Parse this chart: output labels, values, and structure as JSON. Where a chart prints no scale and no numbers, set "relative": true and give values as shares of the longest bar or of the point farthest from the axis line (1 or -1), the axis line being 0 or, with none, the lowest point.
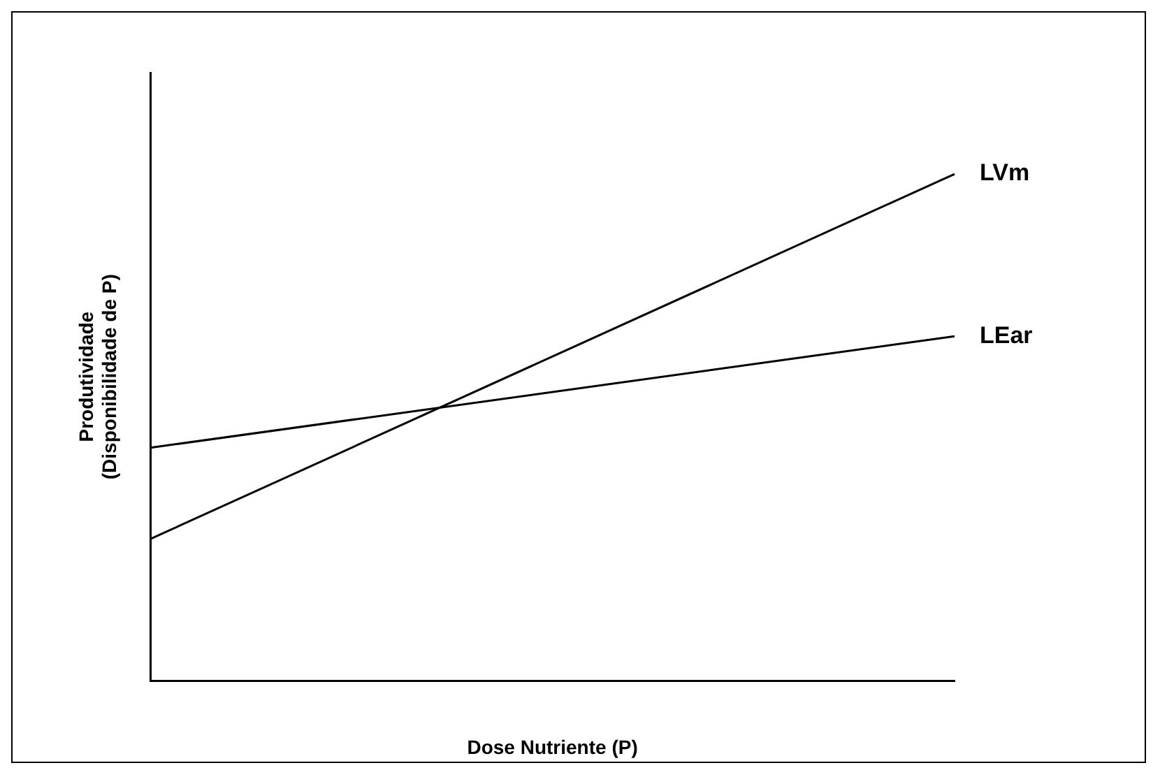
{
  "chart_data": {
    "type": "line",
    "relative": true,
    "xlabel": "Dose Nutriente (P)",
    "ylabel": "Produtividade\n(Disponibilidade de P)",
    "categories": [
      null,
      null
    ],
    "marker": "none",
    "line_style": "solid",
    "grid": false,
    "legend": false,
    "series": [
      {
        "name": "LVm",
        "color": "#000000",
        "values": [
          0.28,
          1
        ]
      },
      {
        "name": "LEar",
        "color": "#000000",
        "values": [
          0.46,
          0.68
        ]
      }
    ]
  }
}
